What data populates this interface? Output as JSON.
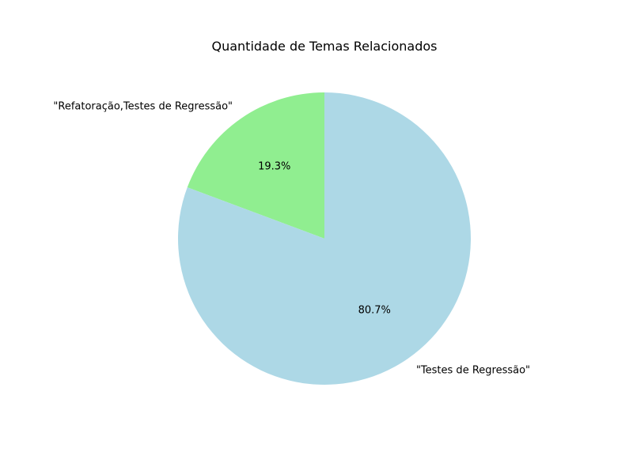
{
  "chart_data": {
    "type": "pie",
    "title": "Quantidade de Temas Relacionados",
    "slices": [
      {
        "label": "\"Refatoração,Testes de Regressão\"",
        "value": 19.3,
        "pct_label": "19.3%",
        "color": "#90ee90"
      },
      {
        "label": "\"Testes de Regressão\"",
        "value": 80.7,
        "pct_label": "80.7%",
        "color": "#add8e6"
      }
    ],
    "start_angle": 90,
    "direction": "counterclockwise",
    "legend": "none"
  }
}
